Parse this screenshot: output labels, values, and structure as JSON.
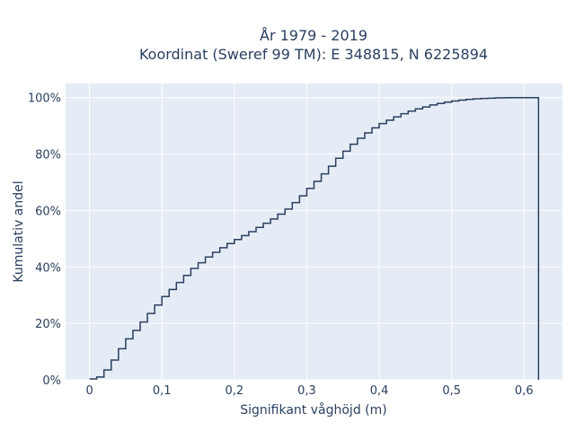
{
  "chart_data": {
    "type": "line",
    "title": "År 1979 - 2019",
    "subtitle": "Koordinat (Sweref 99 TM): E 348815, N 6225894",
    "xlabel": "Signifikant våghöjd (m)",
    "ylabel": "Kumulativ andel",
    "xlim": [
      -0.033,
      0.653
    ],
    "ylim": [
      0,
      1.05
    ],
    "x_ticks": [
      0,
      0.1,
      0.2,
      0.3,
      0.4,
      0.5,
      0.6
    ],
    "x_tick_labels": [
      "0",
      "0,1",
      "0,2",
      "0,3",
      "0,4",
      "0,5",
      "0,6"
    ],
    "y_ticks": [
      0,
      0.2,
      0.4,
      0.6,
      0.8,
      1.0
    ],
    "y_tick_labels": [
      "0%",
      "20%",
      "40%",
      "60%",
      "80%",
      "100%"
    ],
    "grid": true,
    "line_shape": "step",
    "series": [
      {
        "x": [
          0,
          0.01,
          0.02,
          0.03,
          0.04,
          0.05,
          0.06,
          0.07,
          0.08,
          0.09,
          0.1,
          0.11,
          0.12,
          0.13,
          0.14,
          0.15,
          0.16,
          0.17,
          0.18,
          0.19,
          0.2,
          0.21,
          0.22,
          0.23,
          0.24,
          0.25,
          0.26,
          0.27,
          0.28,
          0.29,
          0.3,
          0.31,
          0.32,
          0.33,
          0.34,
          0.35,
          0.36,
          0.37,
          0.38,
          0.39,
          0.4,
          0.41,
          0.42,
          0.43,
          0.44,
          0.45,
          0.46,
          0.47,
          0.48,
          0.49,
          0.5,
          0.51,
          0.52,
          0.53,
          0.54,
          0.55,
          0.56,
          0.57,
          0.58,
          0.59,
          0.6,
          0.62
        ],
        "y": [
          0.003,
          0.01,
          0.035,
          0.07,
          0.11,
          0.145,
          0.175,
          0.205,
          0.235,
          0.265,
          0.295,
          0.32,
          0.345,
          0.37,
          0.395,
          0.415,
          0.435,
          0.452,
          0.468,
          0.483,
          0.497,
          0.511,
          0.525,
          0.54,
          0.555,
          0.57,
          0.587,
          0.605,
          0.628,
          0.652,
          0.678,
          0.703,
          0.73,
          0.757,
          0.785,
          0.81,
          0.835,
          0.856,
          0.875,
          0.893,
          0.908,
          0.92,
          0.932,
          0.943,
          0.952,
          0.96,
          0.967,
          0.974,
          0.979,
          0.984,
          0.988,
          0.991,
          0.994,
          0.996,
          0.997,
          0.998,
          0.999,
          0.9995,
          1.0,
          1.0,
          1.0,
          0.0
        ]
      }
    ],
    "colors": {
      "plot_bg": "#e5ecf6",
      "grid": "#ffffff",
      "line": "#2a3f5f",
      "text": "#2a3f5f"
    }
  }
}
